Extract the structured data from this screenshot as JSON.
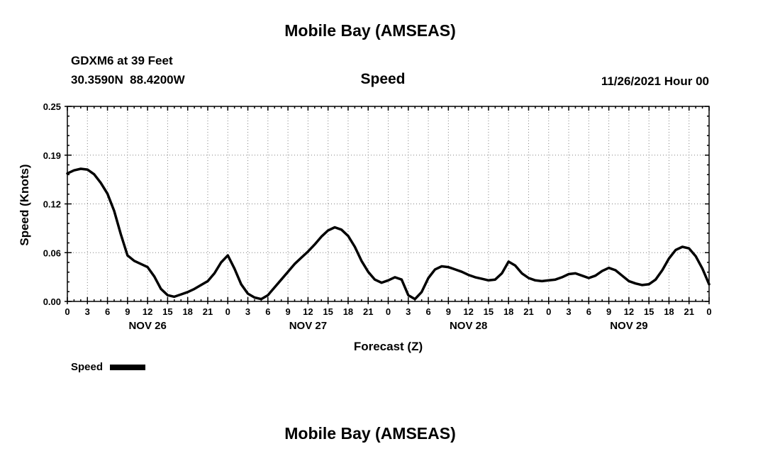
{
  "page": {
    "main_title": "Mobile Bay (AMSEAS)",
    "bottom_title": "Mobile Bay (AMSEAS)"
  },
  "header": {
    "station": "GDXM6 at 39 Feet",
    "coordinates": "30.3590N  88.4200W",
    "panel_title": "Speed",
    "init_time": "11/26/2021 Hour 00"
  },
  "legend": {
    "label": "Speed"
  },
  "chart_data": {
    "type": "line",
    "title": "Speed",
    "xlabel": "Forecast (Z)",
    "ylabel": "Speed (Knots)",
    "ylim": [
      0,
      0.25
    ],
    "ytick_values": [
      0,
      0.0625,
      0.125,
      0.1875,
      0.25
    ],
    "ytick_labels": [
      "0.00",
      "0.06",
      "0.12",
      "0.19",
      "0.25"
    ],
    "xlim": [
      0,
      96
    ],
    "xtick_interval_hours": 3,
    "xminor_interval_hours": 1,
    "xtick_labels_per_day": [
      "0",
      "3",
      "6",
      "9",
      "12",
      "15",
      "18",
      "21"
    ],
    "xtick_end_label": "0",
    "day_labels": [
      "NOV 26",
      "NOV 27",
      "NOV 28",
      "NOV 29"
    ],
    "grid": "dotted",
    "legend_position": "bottom-left",
    "line_color": "#000000",
    "series": [
      {
        "name": "Speed",
        "units": "knots",
        "x_hours_start": 0,
        "x_hours_step": 1,
        "values": [
          0.164,
          0.168,
          0.17,
          0.169,
          0.163,
          0.152,
          0.138,
          0.116,
          0.086,
          0.059,
          0.052,
          0.048,
          0.044,
          0.032,
          0.016,
          0.008,
          0.006,
          0.009,
          0.012,
          0.016,
          0.021,
          0.026,
          0.036,
          0.05,
          0.059,
          0.042,
          0.022,
          0.01,
          0.005,
          0.003,
          0.008,
          0.018,
          0.028,
          0.038,
          0.048,
          0.056,
          0.064,
          0.073,
          0.083,
          0.091,
          0.095,
          0.092,
          0.084,
          0.07,
          0.052,
          0.038,
          0.028,
          0.024,
          0.027,
          0.031,
          0.028,
          0.008,
          0.003,
          0.012,
          0.03,
          0.041,
          0.045,
          0.044,
          0.041,
          0.038,
          0.034,
          0.031,
          0.029,
          0.027,
          0.028,
          0.036,
          0.051,
          0.046,
          0.036,
          0.03,
          0.027,
          0.026,
          0.027,
          0.028,
          0.031,
          0.035,
          0.036,
          0.033,
          0.03,
          0.033,
          0.039,
          0.043,
          0.04,
          0.033,
          0.026,
          0.023,
          0.021,
          0.022,
          0.028,
          0.04,
          0.055,
          0.066,
          0.07,
          0.068,
          0.058,
          0.042,
          0.022
        ]
      }
    ]
  }
}
